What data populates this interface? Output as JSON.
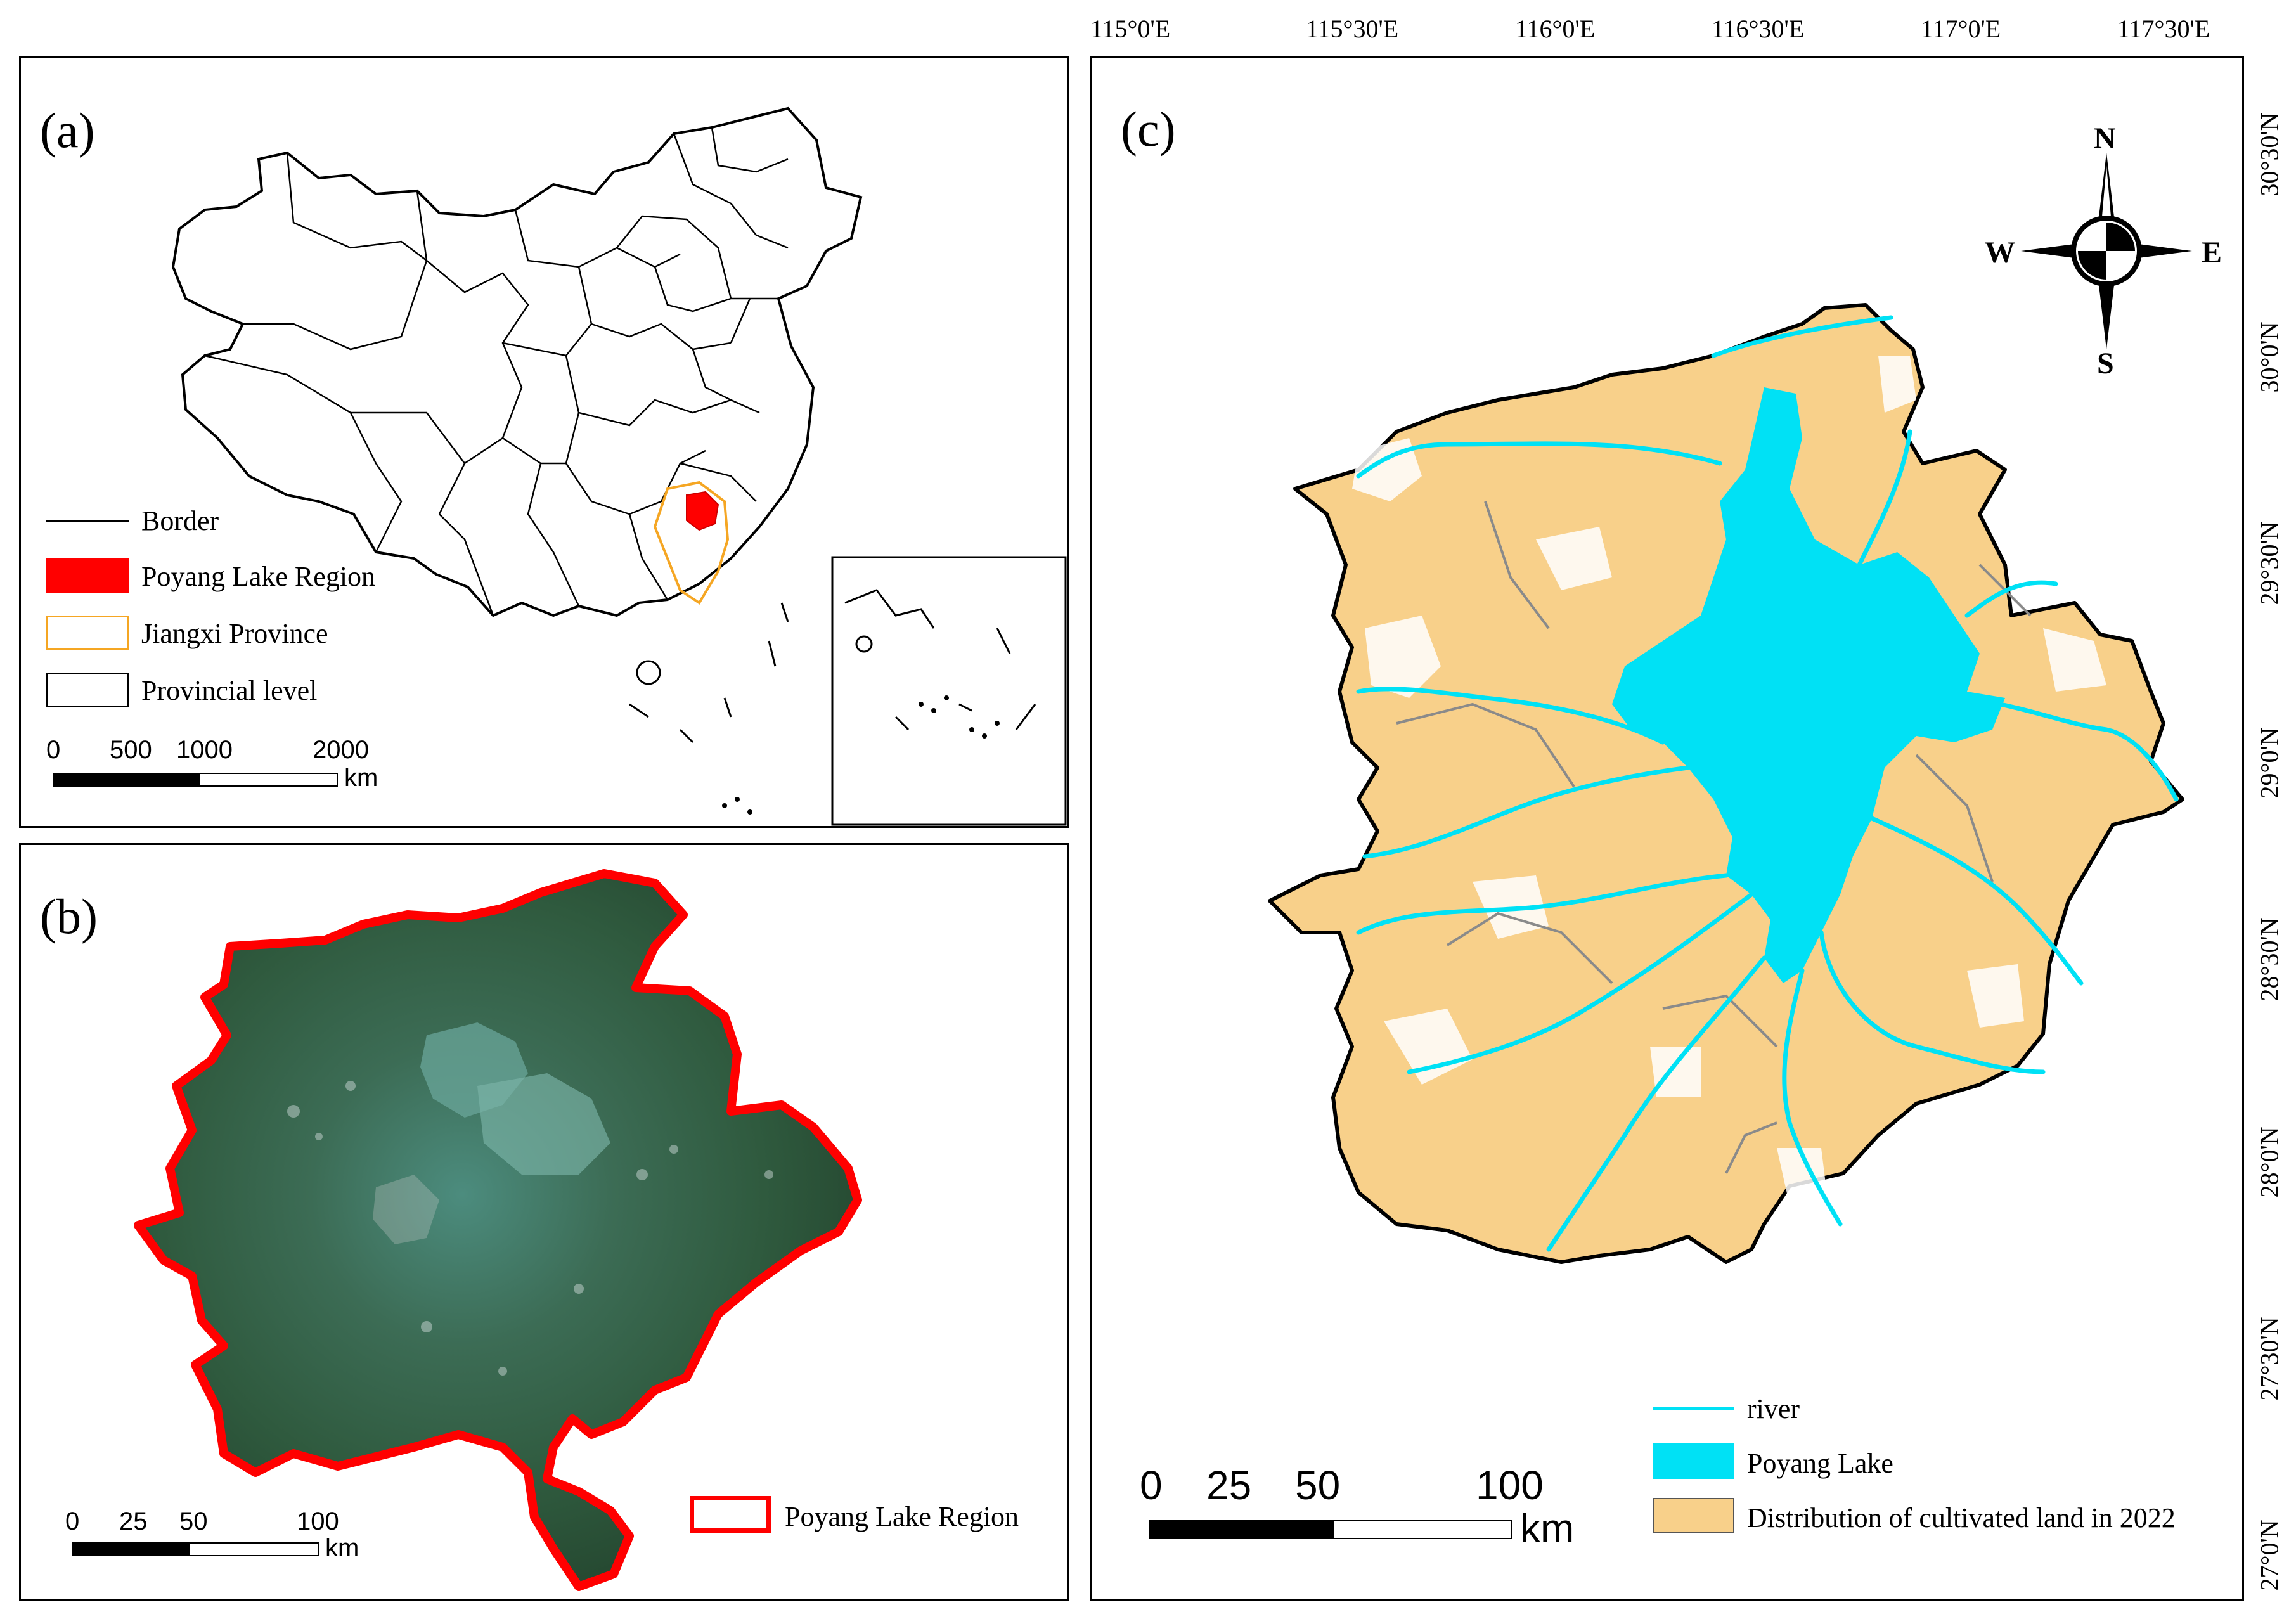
{
  "panel_a": {
    "letter": "(a)",
    "legend": [
      {
        "label": "Border",
        "symbol": "line"
      },
      {
        "label": "Poyang Lake Region",
        "symbol": "red-fill"
      },
      {
        "label": "Jiangxi Province",
        "symbol": "orange-outline"
      },
      {
        "label": "Provincial level",
        "symbol": "black-outline"
      }
    ],
    "scale": {
      "ticks": [
        "0",
        "500",
        "1000",
        "2000"
      ],
      "unit": "km"
    }
  },
  "panel_b": {
    "letter": "(b)",
    "legend": [
      {
        "label": "Poyang Lake Region",
        "symbol": "red-outline"
      }
    ],
    "scale": {
      "ticks": [
        "0",
        "25",
        "50",
        "100"
      ],
      "unit": "km"
    }
  },
  "panel_c": {
    "letter": "(c)",
    "lon_ticks": [
      "115°0'E",
      "115°30'E",
      "116°0'E",
      "116°30'E",
      "117°0'E",
      "117°30'E"
    ],
    "lat_ticks": [
      "30°30'N",
      "30°0'N",
      "29°30'N",
      "29°0'N",
      "28°30'N",
      "28°0'N",
      "27°30'N",
      "27°0'N"
    ],
    "compass": {
      "n": "N",
      "s": "S",
      "e": "E",
      "w": "W"
    },
    "legend": [
      {
        "label": "river",
        "symbol": "cyan-line"
      },
      {
        "label": "Poyang Lake",
        "symbol": "cyan-fill"
      },
      {
        "label": "Distribution of cultivated land in 2022",
        "symbol": "tan-fill"
      }
    ],
    "scale": {
      "ticks": [
        "0",
        "25",
        "50",
        "100"
      ],
      "unit": "km"
    }
  },
  "colors": {
    "region_red": "#ff0000",
    "jiangxi_orange": "#f5a623",
    "lake_cyan": "#00e1f5",
    "cultivated_tan": "#f8d08a",
    "vegetation": "#2f5a3e",
    "boundary_gray": "#8a8a8a"
  },
  "icons": [
    "compass-rose-icon",
    "map-china-outline",
    "map-satellite-region",
    "map-cultivated-land"
  ]
}
